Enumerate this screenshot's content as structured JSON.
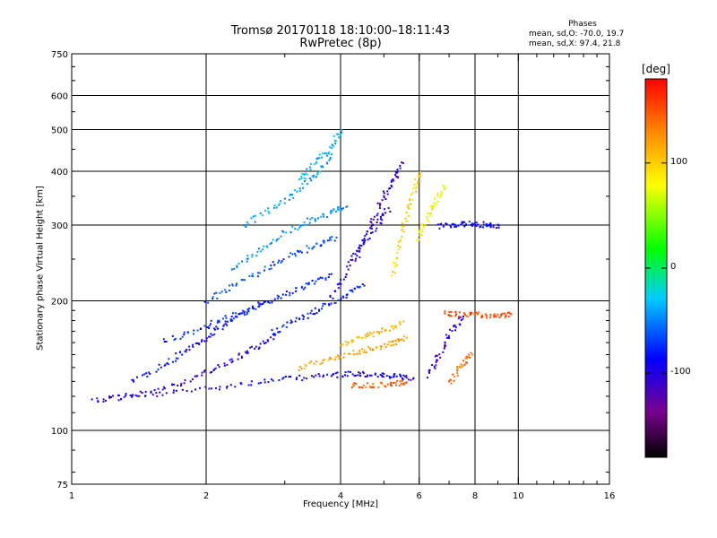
{
  "header": {
    "title_line1": "Tromsø 20170118 18:10:00–18:11:43",
    "title_line2": "RwPretec (8p)",
    "phases_title": "Phases",
    "phases_line_o": "mean, sd,O: -70.0, 19.7",
    "phases_line_x": "mean, sd,X:  97.4, 21.8"
  },
  "colorbar": {
    "unit": "[deg]",
    "tick_labels": [
      "100",
      "0",
      "-100"
    ],
    "tick_values": [
      100,
      0,
      -100
    ],
    "range": [
      -180,
      180
    ]
  },
  "chart_data": {
    "type": "scatter",
    "title": "Tromsø 20170118 18:10:00–18:11:43",
    "subtitle": "RwPretec (8p)",
    "xlabel": "Frequency [MHz]",
    "ylabel": "Stationary phase Virtual Height [km]",
    "xscale": "log",
    "yscale": "log",
    "xlim": [
      1,
      16
    ],
    "ylim": [
      75,
      750
    ],
    "xticks": [
      1,
      2,
      4,
      6,
      8,
      10,
      16
    ],
    "xtick_labels": [
      "1",
      "2",
      "4",
      "6",
      "8",
      "10",
      "16"
    ],
    "xgrid": [
      2,
      4,
      6,
      8,
      10
    ],
    "yticks": [
      75,
      100,
      200,
      300,
      400,
      500,
      600,
      750
    ],
    "ytick_labels": [
      "75",
      "100",
      "200",
      "300",
      "400",
      "500",
      "600",
      "750"
    ],
    "ygrid": [
      100,
      200,
      300,
      400,
      500,
      600
    ],
    "grid": true,
    "color_encoding": "phase [deg], colorbar range -180 to 180",
    "traces": [
      {
        "x": [
          1.1,
          1.5,
          2.0,
          2.6,
          3.2,
          3.8,
          4.3,
          4.8,
          5.3,
          5.8
        ],
        "y": [
          118,
          121,
          126,
          130,
          133,
          135,
          136,
          135,
          134,
          133
        ],
        "phase": -95
      },
      {
        "x": [
          1.15,
          1.4,
          1.7,
          2.0,
          2.3,
          2.6,
          2.9
        ],
        "y": [
          118,
          122,
          128,
          137,
          147,
          158,
          170
        ],
        "phase": -105
      },
      {
        "x": [
          1.35,
          1.6,
          1.8,
          2.0,
          2.2,
          2.4,
          2.7
        ],
        "y": [
          130,
          142,
          154,
          165,
          177,
          188,
          200
        ],
        "phase": -85
      },
      {
        "x": [
          1.6,
          1.9,
          2.2,
          2.6,
          3.0,
          3.4,
          3.8
        ],
        "y": [
          162,
          172,
          183,
          195,
          208,
          221,
          232
        ],
        "phase": -75
      },
      {
        "x": [
          2.0,
          2.3,
          2.7,
          3.1,
          3.5,
          3.9
        ],
        "y": [
          200,
          218,
          238,
          256,
          270,
          282
        ],
        "phase": -65
      },
      {
        "x": [
          2.3,
          2.6,
          3.0,
          3.4,
          3.8,
          4.1
        ],
        "y": [
          240,
          262,
          290,
          308,
          322,
          332
        ],
        "phase": -45
      },
      {
        "x": [
          2.4,
          2.8,
          3.2,
          3.5,
          3.8
        ],
        "y": [
          300,
          330,
          362,
          395,
          440
        ],
        "phase": -40
      },
      {
        "x": [
          3.2,
          3.5,
          3.8,
          4.0
        ],
        "y": [
          380,
          420,
          460,
          500
        ],
        "phase": -35
      },
      {
        "x": [
          2.8,
          3.2,
          3.6,
          4.0,
          4.5
        ],
        "y": [
          170,
          182,
          193,
          205,
          218
        ],
        "phase": -80
      },
      {
        "x": [
          3.8,
          4.1,
          4.4,
          4.8,
          5.1
        ],
        "y": [
          205,
          235,
          270,
          300,
          330
        ],
        "phase": -100
      },
      {
        "x": [
          4.3,
          4.6,
          4.9,
          5.2,
          5.5
        ],
        "y": [
          250,
          295,
          340,
          380,
          420
        ],
        "phase": -110
      },
      {
        "x": [
          4.0,
          4.5,
          5.0,
          5.5
        ],
        "y": [
          160,
          166,
          172,
          180
        ],
        "phase": 110
      },
      {
        "x": [
          3.2,
          3.7,
          4.2,
          4.7,
          5.2,
          5.6
        ],
        "y": [
          140,
          147,
          152,
          156,
          160,
          165
        ],
        "phase": 120
      },
      {
        "x": [
          4.2,
          4.7,
          5.2,
          5.6
        ],
        "y": [
          128,
          128,
          129,
          130
        ],
        "phase": 145
      },
      {
        "x": [
          5.2,
          5.4,
          5.6,
          5.8,
          6.0
        ],
        "y": [
          230,
          270,
          320,
          360,
          400
        ],
        "phase": 100
      },
      {
        "x": [
          5.9,
          6.2,
          6.5,
          6.8
        ],
        "y": [
          280,
          310,
          340,
          370
        ],
        "phase": 80
      },
      {
        "x": [
          6.8,
          7.5,
          8.2,
          9.0,
          9.6
        ],
        "y": [
          188,
          187,
          186,
          186,
          187
        ],
        "phase": 150
      },
      {
        "x": [
          6.3,
          6.6,
          7.0,
          7.5
        ],
        "y": [
          135,
          150,
          168,
          185
        ],
        "phase": -110
      },
      {
        "x": [
          7.0,
          7.4,
          7.8
        ],
        "y": [
          130,
          142,
          152
        ],
        "phase": 140
      },
      {
        "x": [
          6.6,
          7.2,
          7.8,
          8.4,
          9.0
        ],
        "y": [
          300,
          302,
          303,
          302,
          301
        ],
        "phase": -90
      }
    ]
  }
}
